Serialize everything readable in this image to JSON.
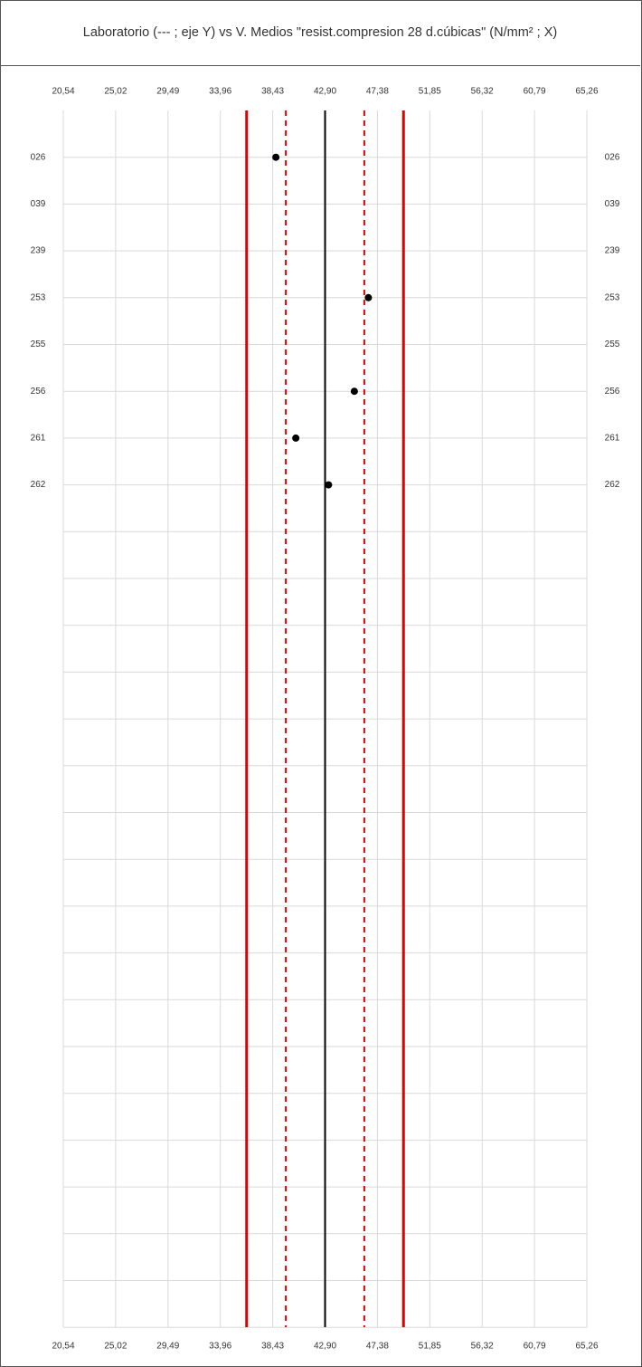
{
  "chart_data": {
    "type": "scatter",
    "title": "Laboratorio (--- ; eje Y) vs V. Medios \"resist.compresion 28 d.cúbicas\" (N/mm² ; X)",
    "xlabel": "",
    "ylabel": "",
    "x_ticks": [
      "20,54",
      "25,02",
      "29,49",
      "33,96",
      "38,43",
      "42,90",
      "47,38",
      "51,85",
      "56,32",
      "60,79",
      "65,26"
    ],
    "xlim": [
      20.54,
      65.26
    ],
    "categories": [
      "026",
      "039",
      "239",
      "253",
      "255",
      "256",
      "261",
      "262"
    ],
    "points": [
      {
        "lab": "026",
        "x": 38.7
      },
      {
        "lab": "253",
        "x": 46.6
      },
      {
        "lab": "256",
        "x": 45.4
      },
      {
        "lab": "261",
        "x": 40.4
      },
      {
        "lab": "262",
        "x": 43.2
      }
    ],
    "reference_lines": [
      {
        "kind": "mean",
        "x": 42.9,
        "color": "#000000",
        "style": "solid"
      },
      {
        "kind": "outer-limit-low",
        "x": 36.2,
        "color": "#e00000",
        "style": "solid"
      },
      {
        "kind": "outer-limit-high",
        "x": 49.6,
        "color": "#e00000",
        "style": "solid"
      },
      {
        "kind": "inner-limit-low",
        "x": 39.55,
        "color": "#e00000",
        "style": "dashed"
      },
      {
        "kind": "inner-limit-high",
        "x": 46.25,
        "color": "#e00000",
        "style": "dashed"
      }
    ],
    "total_rows": 26,
    "grid": true,
    "legend": "none"
  }
}
